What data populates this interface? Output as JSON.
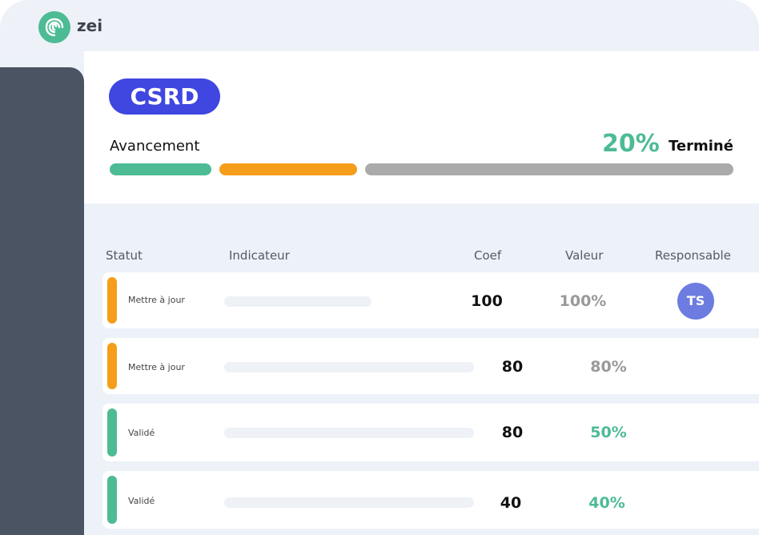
{
  "brand": {
    "name": "zei"
  },
  "badge": "CSRD",
  "progress": {
    "label": "Avancement",
    "percent_text": "20%",
    "status": "Terminé",
    "segments": [
      {
        "color": "#4dbb94"
      },
      {
        "color": "#f59e1b"
      },
      {
        "color": "#aaaaaa"
      }
    ]
  },
  "table": {
    "headers": [
      "Statut",
      "Indicateur",
      "Coef",
      "Valeur",
      "Responsable"
    ],
    "rows": [
      {
        "status": "Mettre à jour",
        "status_color": "#f59e1b",
        "coef": "100",
        "value": "100%",
        "value_color": "#999999",
        "responsable": "TS"
      },
      {
        "status": "Mettre à jour",
        "status_color": "#f59e1b",
        "coef": "80",
        "value": "80%",
        "value_color": "#999999"
      },
      {
        "status": "Validé",
        "status_color": "#4dbb94",
        "coef": "80",
        "value": "50%",
        "value_color": "#4dbb94"
      },
      {
        "status": "Validé",
        "status_color": "#4dbb94",
        "coef": "40",
        "value": "40%",
        "value_color": "#4dbb94"
      }
    ]
  }
}
